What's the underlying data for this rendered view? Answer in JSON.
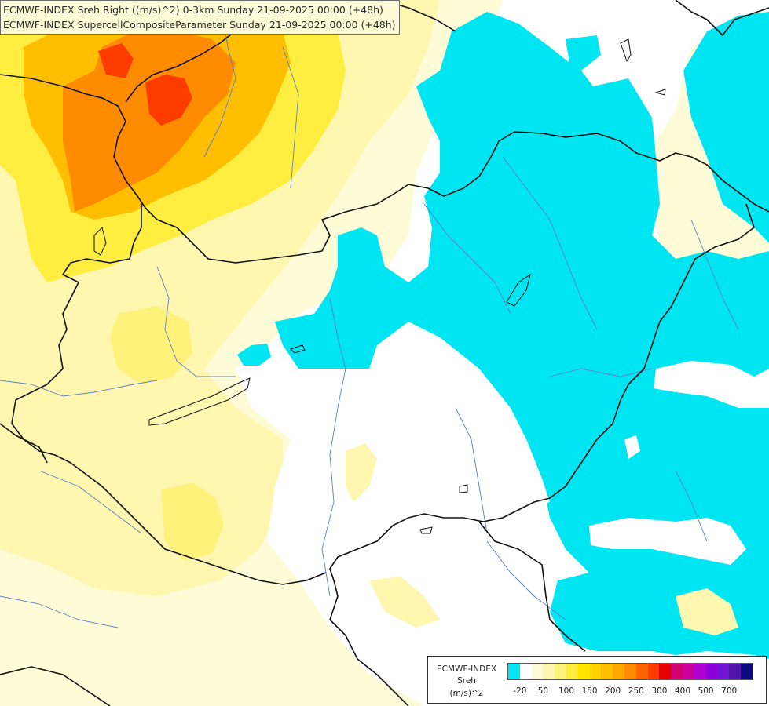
{
  "header": {
    "title_line1": "ECMWF-INDEX Sreh Right ((m/s)^2) 0-3km Sunday 21-09-2025 00:00 (+48h)",
    "title_line2": "ECMWF-INDEX SupercellCompositeParameter Sunday 21-09-2025 00:00 (+48h)"
  },
  "legend": {
    "label_line1": "ECMWF-INDEX",
    "label_line2": "Sreh",
    "label_line3": "(m/s)^2",
    "colors": [
      "#00e5f2",
      "#ffffff",
      "#fffbd6",
      "#fff7b0",
      "#fff27a",
      "#ffee40",
      "#ffe600",
      "#ffd200",
      "#ffbe00",
      "#ffa800",
      "#ff8c00",
      "#ff6400",
      "#ff3c00",
      "#e60000",
      "#d2006e",
      "#c800a0",
      "#aa00d2",
      "#8c00dc",
      "#6e14d2",
      "#5014aa",
      "#0a0a78"
    ],
    "ticks": [
      {
        "label": "-20",
        "index": 1
      },
      {
        "label": "50",
        "index": 3
      },
      {
        "label": "100",
        "index": 5
      },
      {
        "label": "150",
        "index": 7
      },
      {
        "label": "200",
        "index": 9
      },
      {
        "label": "250",
        "index": 11
      },
      {
        "label": "300",
        "index": 13
      },
      {
        "label": "400",
        "index": 15
      },
      {
        "label": "500",
        "index": 17
      },
      {
        "label": "700",
        "index": 19
      }
    ]
  },
  "colors": {
    "cyan": "#00e5f2",
    "pale_yellow": "#fffbd6",
    "light_yellow": "#fff7b0",
    "yellow": "#ffee40",
    "orange": "#ffbe00",
    "dark_orange": "#ff8c00",
    "red_orange": "#ff3c00",
    "border": "#111111",
    "river": "#5a7fc8"
  }
}
